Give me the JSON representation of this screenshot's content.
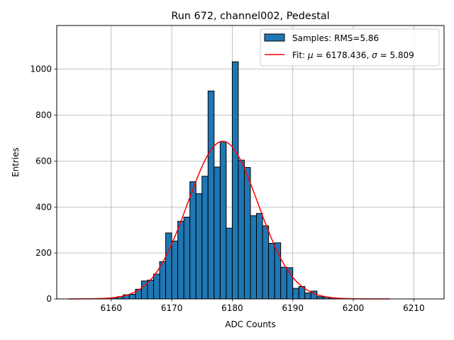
{
  "chart_data": {
    "type": "bar",
    "title": "Run 672, channel002, Pedestal",
    "xlabel": "ADC Counts",
    "ylabel": "Entries",
    "xlim": [
      6151,
      6215
    ],
    "ylim": [
      0,
      1190
    ],
    "xticks": [
      6160,
      6170,
      6180,
      6190,
      6200,
      6210
    ],
    "yticks": [
      0,
      200,
      400,
      600,
      800,
      1000
    ],
    "grid": true,
    "legend_position": "top-right",
    "bin_width": 1,
    "series": [
      {
        "name": "Samples: RMS=5.86",
        "kind": "histogram",
        "color": "#1f77b4",
        "edge_color": "#000000",
        "bins": [
          6160,
          6161,
          6162,
          6163,
          6164,
          6165,
          6166,
          6167,
          6168,
          6169,
          6170,
          6171,
          6172,
          6173,
          6174,
          6175,
          6176,
          6177,
          6178,
          6179,
          6180,
          6181,
          6182,
          6183,
          6184,
          6185,
          6186,
          6187,
          6188,
          6189,
          6190,
          6191,
          6192,
          6193,
          6194,
          6195,
          6196
        ],
        "values": [
          5,
          10,
          18,
          20,
          42,
          78,
          82,
          108,
          162,
          287,
          252,
          338,
          356,
          510,
          458,
          534,
          905,
          574,
          684,
          308,
          1032,
          604,
          572,
          362,
          372,
          318,
          242,
          244,
          138,
          136,
          46,
          54,
          26,
          34,
          10,
          8,
          4
        ]
      },
      {
        "name": "Fit: μ = 6178.436, σ = 5.809",
        "legend_parts": [
          "Fit: ",
          "μ",
          " = 6178.436, ",
          "σ",
          " = 5.809"
        ],
        "kind": "gaussian",
        "color": "#ff0000",
        "mu": 6178.436,
        "sigma": 5.809,
        "amplitude": 686,
        "x_range": [
          6153,
          6206
        ]
      }
    ]
  }
}
